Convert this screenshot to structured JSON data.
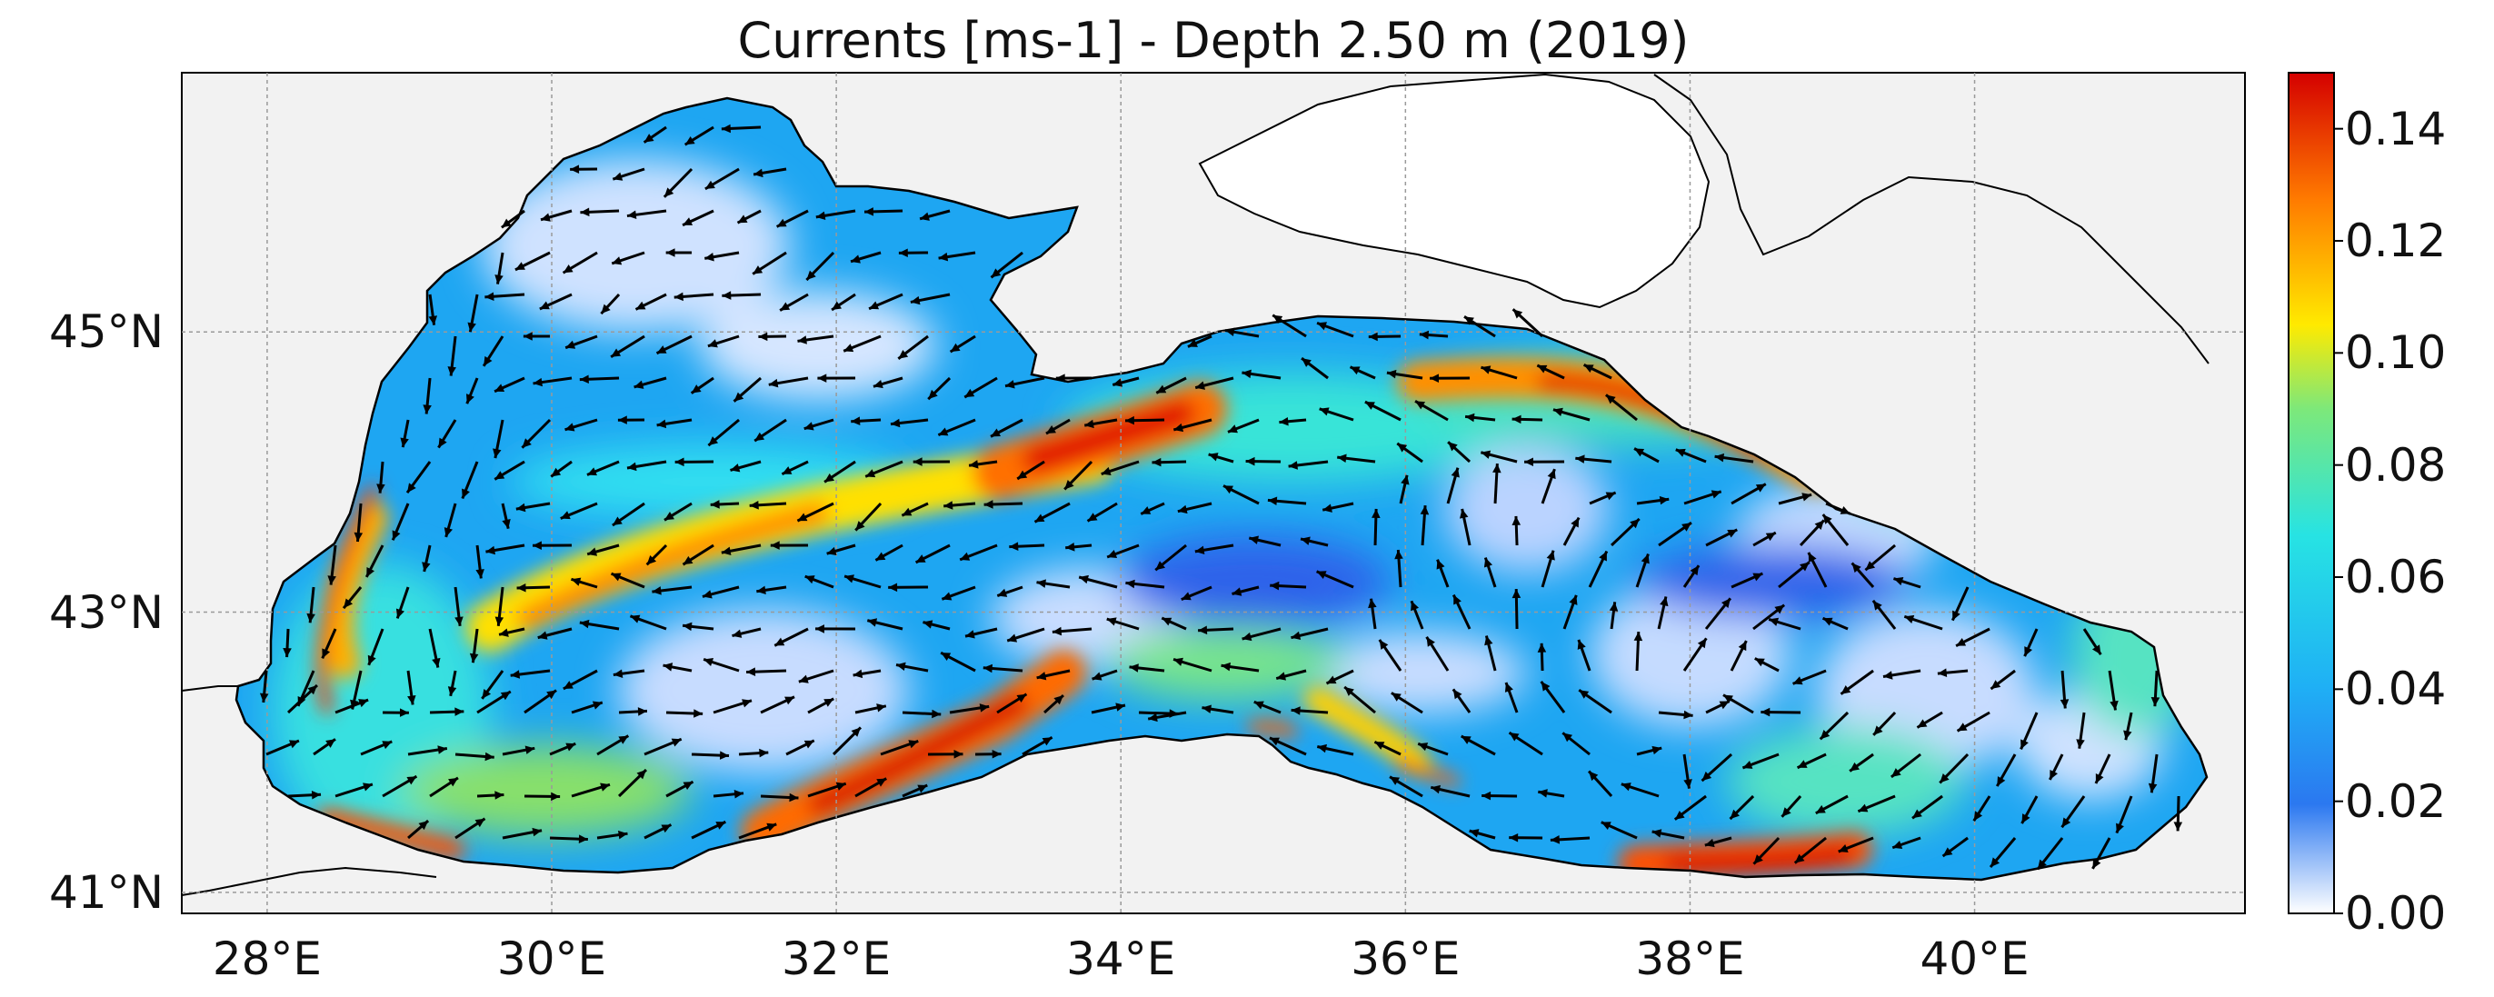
{
  "title": "Currents [ms-1] - Depth 2.50 m (2019)",
  "map": {
    "region": "Black Sea",
    "variable": "Currents",
    "units": "ms-1",
    "depth": "2.50 m",
    "year": "2019",
    "lon_range": [
      27.4,
      41.9
    ],
    "lat_range": [
      40.85,
      46.85
    ],
    "x_ticks": [
      {
        "value": 28,
        "label": "28°E"
      },
      {
        "value": 30,
        "label": "30°E"
      },
      {
        "value": 32,
        "label": "32°E"
      },
      {
        "value": 34,
        "label": "34°E"
      },
      {
        "value": 36,
        "label": "36°E"
      },
      {
        "value": 38,
        "label": "38°E"
      },
      {
        "value": 40,
        "label": "40°E"
      }
    ],
    "y_ticks": [
      {
        "value": 45,
        "label": "45°N"
      },
      {
        "value": 43,
        "label": "43°N"
      },
      {
        "value": 41,
        "label": "41°N"
      }
    ],
    "gridlines": true,
    "land_color": "#ffffff",
    "outside_domain_color": "#f2f2f2",
    "coastline_color": "#000000",
    "arrow_color": "#000000"
  },
  "colorbar": {
    "min": 0.0,
    "max": 0.15,
    "ticks": [
      "0.00",
      "0.02",
      "0.04",
      "0.06",
      "0.08",
      "0.10",
      "0.12",
      "0.14"
    ],
    "colormap": "jet-like (white → blue → cyan → yellow → red)",
    "colors": [
      "#ffffff",
      "#2b78f0",
      "#27d3f2",
      "#ffe800",
      "#ff6a00",
      "#d40000"
    ]
  }
}
